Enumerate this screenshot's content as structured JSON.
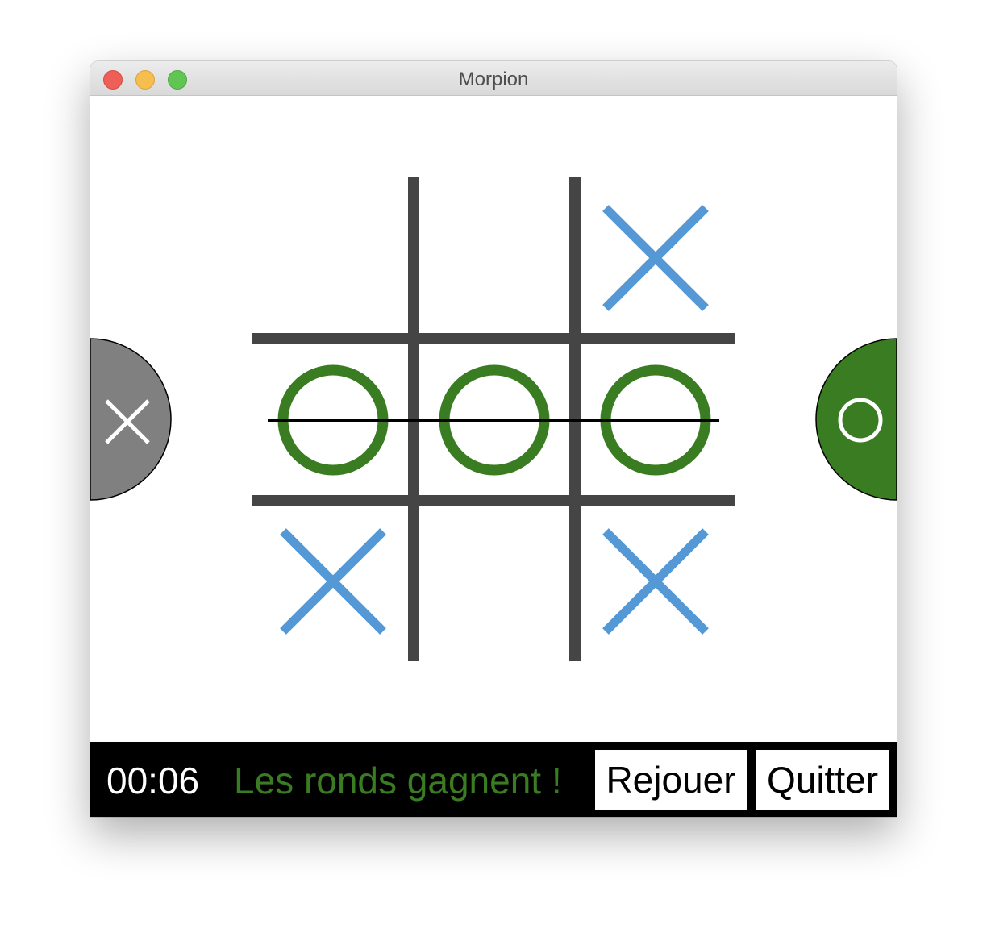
{
  "window": {
    "title": "Morpion"
  },
  "board": {
    "cells": [
      [
        "",
        "",
        "X"
      ],
      [
        "O",
        "O",
        "O"
      ],
      [
        "X",
        "",
        "X"
      ]
    ],
    "winning_line": "row 2"
  },
  "players": {
    "left": {
      "symbol": "X",
      "active": false
    },
    "right": {
      "symbol": "O",
      "active": true
    }
  },
  "bottom_bar": {
    "timer": "00:06",
    "status": "Les ronds gagnent !",
    "replay_label": "Rejouer",
    "quit_label": "Quitter"
  },
  "colors": {
    "x_mark": "#5498d6",
    "o_mark": "#3a7c22",
    "grid": "#454545",
    "win_line": "#000000",
    "inactive_player": "#808080",
    "active_player": "#3a7c22",
    "status_text": "#3a7c22",
    "bar_background": "#000000"
  }
}
